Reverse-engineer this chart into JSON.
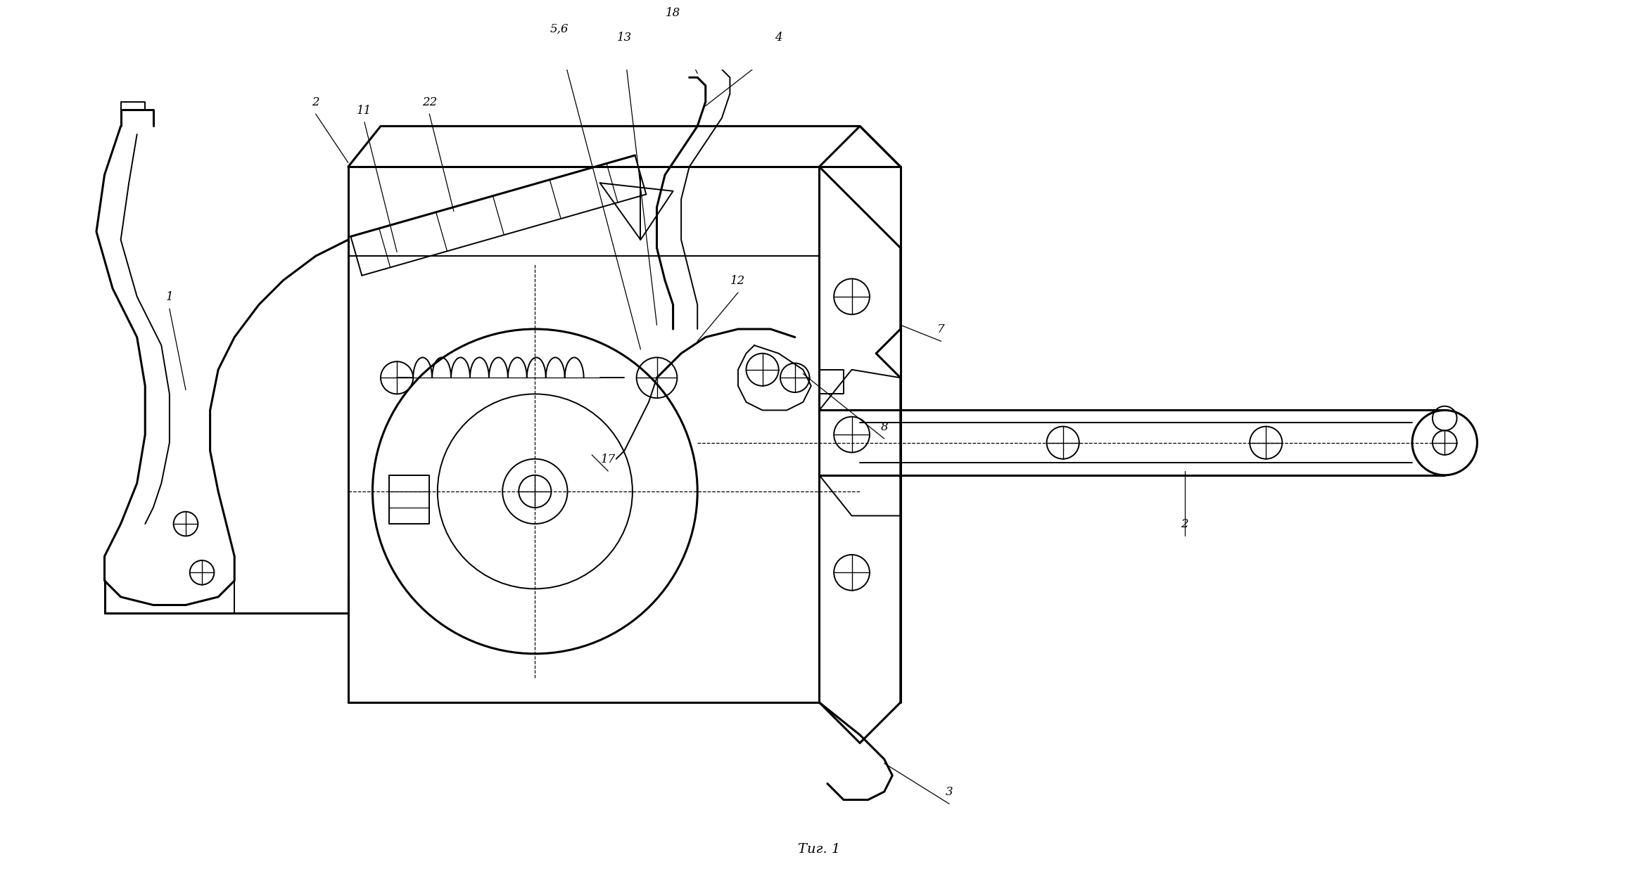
{
  "background": "#ffffff",
  "line_color": "#000000",
  "caption": "Τиг. 1",
  "lw_heavy": 2.2,
  "lw_med": 1.4,
  "lw_light": 0.9
}
